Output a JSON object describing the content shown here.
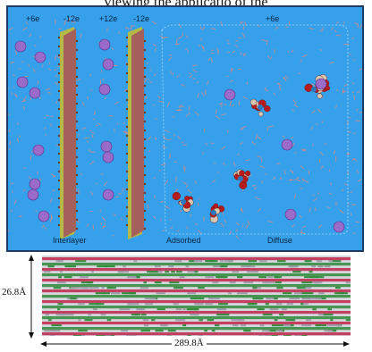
{
  "caption": "viewing the applicatio of the",
  "top_panel": {
    "charges": [
      "+6e",
      "-12e",
      "+12e",
      "-12e",
      "+6e"
    ],
    "regions": [
      "Interlayer",
      "Adsorbed",
      "Diffuse"
    ],
    "colors": {
      "water": "#36a1ea",
      "clay_core": "#a4605a",
      "clay_edge": "#cbbd2b",
      "cation": "#9a6bc8",
      "anion": "#b81b1b",
      "solvent_mesh": "#c98b8b"
    }
  },
  "bottom_panel": {
    "height_label": "26.8Å",
    "width_label": "289.8Å",
    "colors": {
      "band_red": "#c0264a",
      "band_green": "#2f8a3a",
      "band_gray": "#9a9aa8"
    }
  }
}
